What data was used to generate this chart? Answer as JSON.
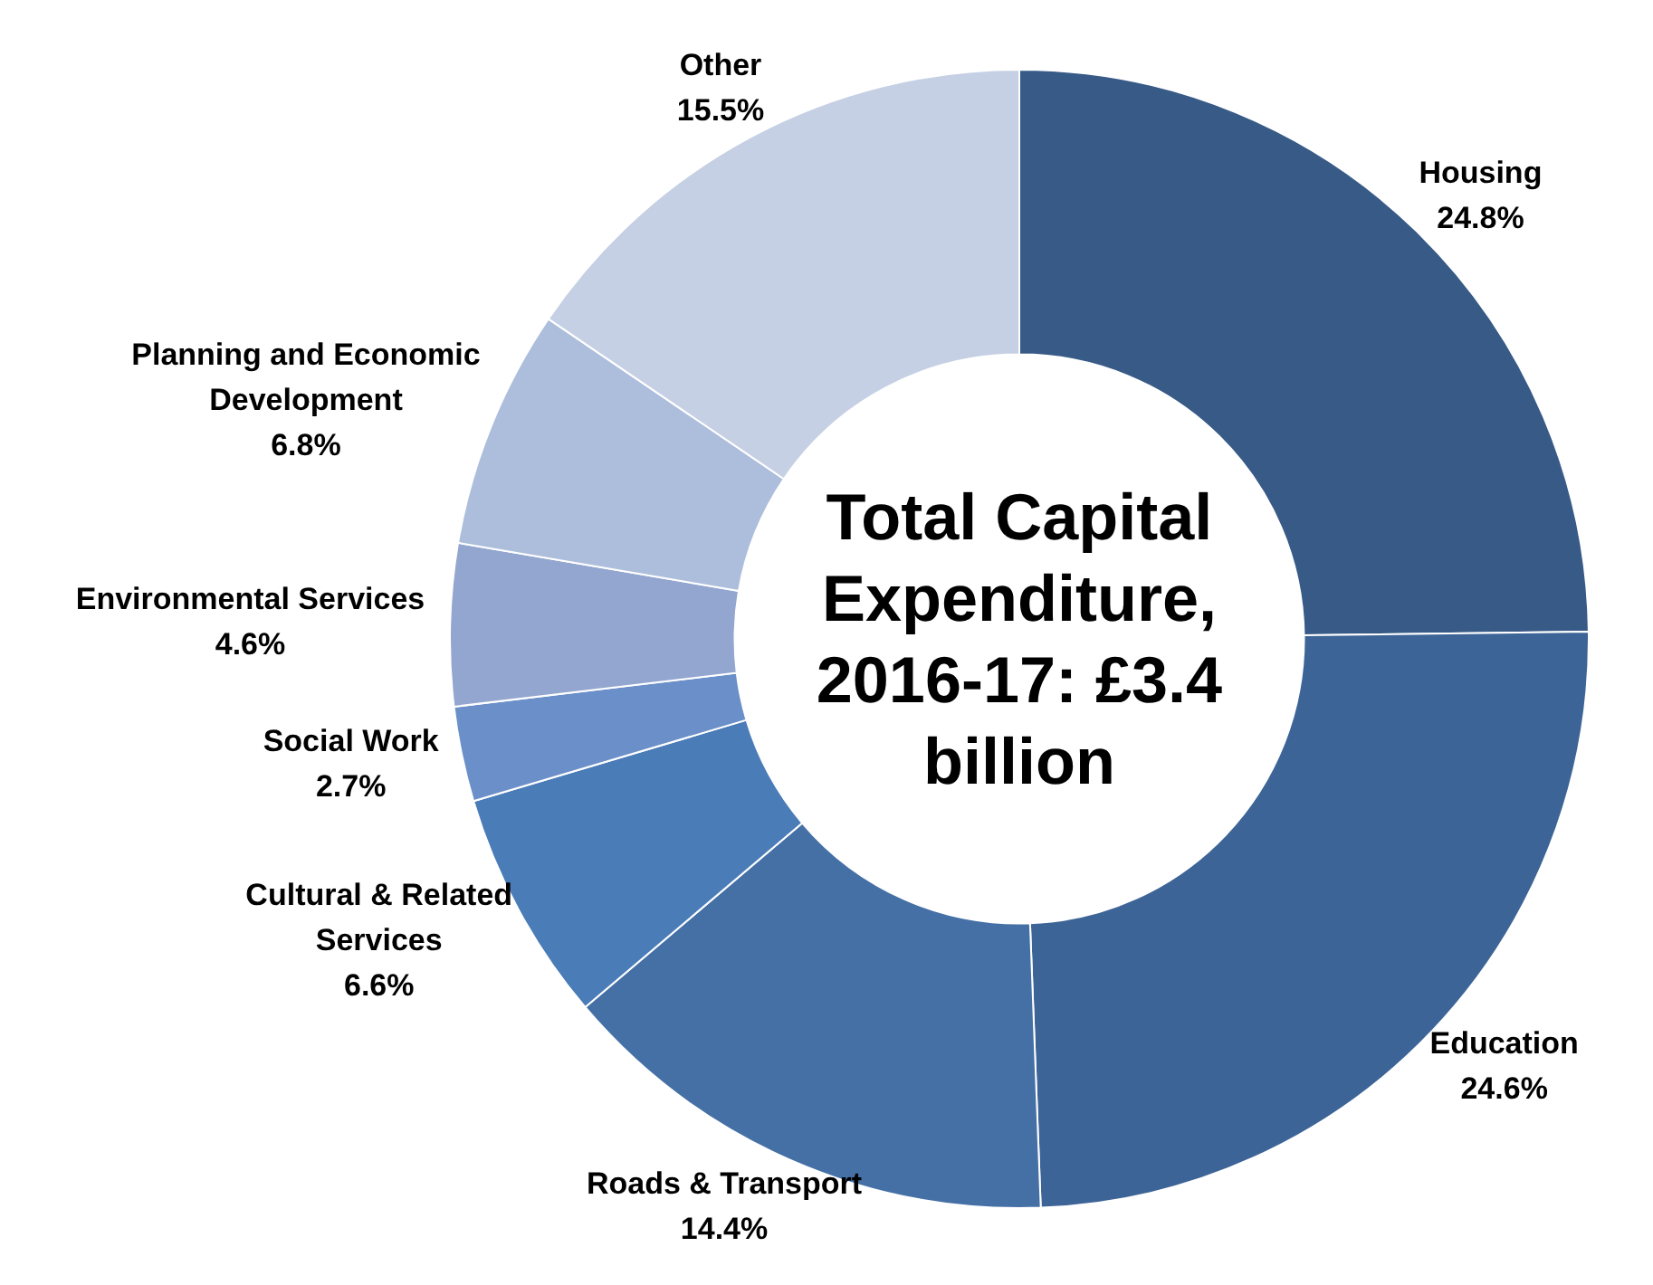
{
  "chart_data": {
    "type": "donut",
    "title": "Total Capital Expenditure, 2016-17: £3.4 billion",
    "categories": [
      "Housing",
      "Education",
      "Roads & Transport",
      "Cultural & Related Services",
      "Social Work",
      "Environmental Services",
      "Planning and Economic Development",
      "Other"
    ],
    "values": [
      24.8,
      24.6,
      14.4,
      6.6,
      2.7,
      4.6,
      6.8,
      15.5
    ],
    "colors": [
      "#375a87",
      "#3d6496",
      "#4570a6",
      "#4a7cb8",
      "#6b8fc8",
      "#93a6d0",
      "#adbedc",
      "#c6d0e4"
    ],
    "value_labels": [
      "24.8%",
      "24.6%",
      "14.4%",
      "6.6%",
      "2.7%",
      "4.6%",
      "6.8%",
      "15.5%"
    ],
    "legend": false
  }
}
